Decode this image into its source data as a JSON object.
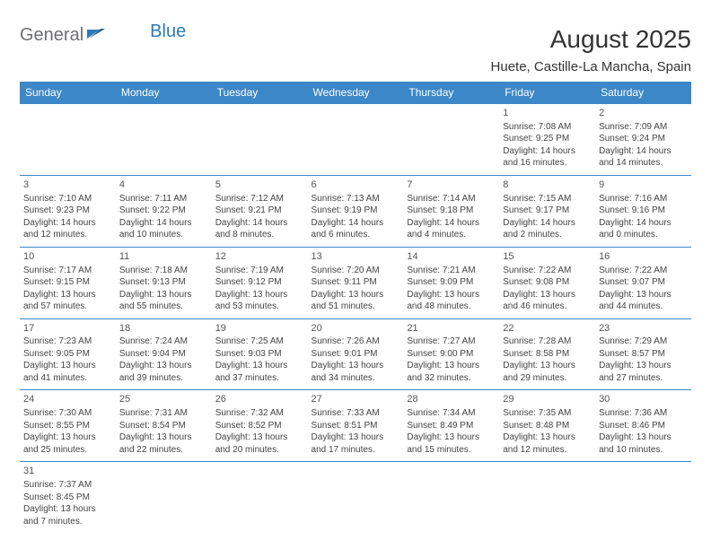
{
  "logo": {
    "part1": "General",
    "part2": "Blue"
  },
  "title": "August 2025",
  "location": "Huete, Castille-La Mancha, Spain",
  "headerColor": "#3b87c8",
  "weekdays": [
    "Sunday",
    "Monday",
    "Tuesday",
    "Wednesday",
    "Thursday",
    "Friday",
    "Saturday"
  ],
  "weeks": [
    [
      null,
      null,
      null,
      null,
      null,
      {
        "d": "1",
        "sr": "7:08 AM",
        "ss": "9:25 PM",
        "dl1": "14 hours",
        "dl2": "and 16 minutes."
      },
      {
        "d": "2",
        "sr": "7:09 AM",
        "ss": "9:24 PM",
        "dl1": "14 hours",
        "dl2": "and 14 minutes."
      }
    ],
    [
      {
        "d": "3",
        "sr": "7:10 AM",
        "ss": "9:23 PM",
        "dl1": "14 hours",
        "dl2": "and 12 minutes."
      },
      {
        "d": "4",
        "sr": "7:11 AM",
        "ss": "9:22 PM",
        "dl1": "14 hours",
        "dl2": "and 10 minutes."
      },
      {
        "d": "5",
        "sr": "7:12 AM",
        "ss": "9:21 PM",
        "dl1": "14 hours",
        "dl2": "and 8 minutes."
      },
      {
        "d": "6",
        "sr": "7:13 AM",
        "ss": "9:19 PM",
        "dl1": "14 hours",
        "dl2": "and 6 minutes."
      },
      {
        "d": "7",
        "sr": "7:14 AM",
        "ss": "9:18 PM",
        "dl1": "14 hours",
        "dl2": "and 4 minutes."
      },
      {
        "d": "8",
        "sr": "7:15 AM",
        "ss": "9:17 PM",
        "dl1": "14 hours",
        "dl2": "and 2 minutes."
      },
      {
        "d": "9",
        "sr": "7:16 AM",
        "ss": "9:16 PM",
        "dl1": "14 hours",
        "dl2": "and 0 minutes."
      }
    ],
    [
      {
        "d": "10",
        "sr": "7:17 AM",
        "ss": "9:15 PM",
        "dl1": "13 hours",
        "dl2": "and 57 minutes."
      },
      {
        "d": "11",
        "sr": "7:18 AM",
        "ss": "9:13 PM",
        "dl1": "13 hours",
        "dl2": "and 55 minutes."
      },
      {
        "d": "12",
        "sr": "7:19 AM",
        "ss": "9:12 PM",
        "dl1": "13 hours",
        "dl2": "and 53 minutes."
      },
      {
        "d": "13",
        "sr": "7:20 AM",
        "ss": "9:11 PM",
        "dl1": "13 hours",
        "dl2": "and 51 minutes."
      },
      {
        "d": "14",
        "sr": "7:21 AM",
        "ss": "9:09 PM",
        "dl1": "13 hours",
        "dl2": "and 48 minutes."
      },
      {
        "d": "15",
        "sr": "7:22 AM",
        "ss": "9:08 PM",
        "dl1": "13 hours",
        "dl2": "and 46 minutes."
      },
      {
        "d": "16",
        "sr": "7:22 AM",
        "ss": "9:07 PM",
        "dl1": "13 hours",
        "dl2": "and 44 minutes."
      }
    ],
    [
      {
        "d": "17",
        "sr": "7:23 AM",
        "ss": "9:05 PM",
        "dl1": "13 hours",
        "dl2": "and 41 minutes."
      },
      {
        "d": "18",
        "sr": "7:24 AM",
        "ss": "9:04 PM",
        "dl1": "13 hours",
        "dl2": "and 39 minutes."
      },
      {
        "d": "19",
        "sr": "7:25 AM",
        "ss": "9:03 PM",
        "dl1": "13 hours",
        "dl2": "and 37 minutes."
      },
      {
        "d": "20",
        "sr": "7:26 AM",
        "ss": "9:01 PM",
        "dl1": "13 hours",
        "dl2": "and 34 minutes."
      },
      {
        "d": "21",
        "sr": "7:27 AM",
        "ss": "9:00 PM",
        "dl1": "13 hours",
        "dl2": "and 32 minutes."
      },
      {
        "d": "22",
        "sr": "7:28 AM",
        "ss": "8:58 PM",
        "dl1": "13 hours",
        "dl2": "and 29 minutes."
      },
      {
        "d": "23",
        "sr": "7:29 AM",
        "ss": "8:57 PM",
        "dl1": "13 hours",
        "dl2": "and 27 minutes."
      }
    ],
    [
      {
        "d": "24",
        "sr": "7:30 AM",
        "ss": "8:55 PM",
        "dl1": "13 hours",
        "dl2": "and 25 minutes."
      },
      {
        "d": "25",
        "sr": "7:31 AM",
        "ss": "8:54 PM",
        "dl1": "13 hours",
        "dl2": "and 22 minutes."
      },
      {
        "d": "26",
        "sr": "7:32 AM",
        "ss": "8:52 PM",
        "dl1": "13 hours",
        "dl2": "and 20 minutes."
      },
      {
        "d": "27",
        "sr": "7:33 AM",
        "ss": "8:51 PM",
        "dl1": "13 hours",
        "dl2": "and 17 minutes."
      },
      {
        "d": "28",
        "sr": "7:34 AM",
        "ss": "8:49 PM",
        "dl1": "13 hours",
        "dl2": "and 15 minutes."
      },
      {
        "d": "29",
        "sr": "7:35 AM",
        "ss": "8:48 PM",
        "dl1": "13 hours",
        "dl2": "and 12 minutes."
      },
      {
        "d": "30",
        "sr": "7:36 AM",
        "ss": "8:46 PM",
        "dl1": "13 hours",
        "dl2": "and 10 minutes."
      }
    ],
    [
      {
        "d": "31",
        "sr": "7:37 AM",
        "ss": "8:45 PM",
        "dl1": "13 hours",
        "dl2": "and 7 minutes."
      },
      null,
      null,
      null,
      null,
      null,
      null
    ]
  ],
  "labels": {
    "sunrise": "Sunrise:",
    "sunset": "Sunset:",
    "daylight": "Daylight:"
  }
}
